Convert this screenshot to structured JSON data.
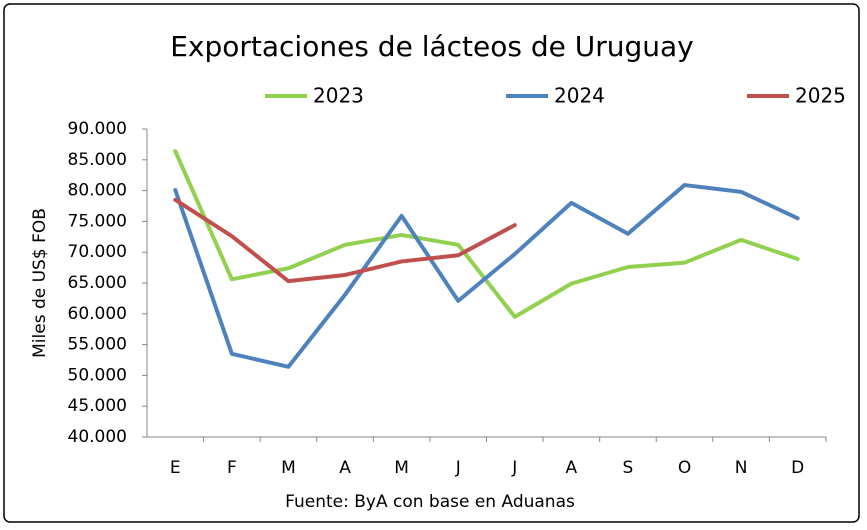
{
  "chart_data": {
    "type": "line",
    "title": "Exportaciones de lácteos de Uruguay",
    "y_label": "Miles de US$ FOB",
    "source": "Fuente: ByA con base en Aduanas",
    "categories": [
      "E",
      "F",
      "M",
      "A",
      "M",
      "J",
      "J",
      "A",
      "S",
      "O",
      "N",
      "D"
    ],
    "series": [
      {
        "name": "2023",
        "color": "#92d050",
        "values": [
          86400,
          65600,
          67400,
          71200,
          72800,
          71200,
          59500,
          64900,
          67600,
          68300,
          72000,
          68900
        ]
      },
      {
        "name": "2024",
        "color": "#4f81bd",
        "values": [
          80100,
          53500,
          51400,
          63100,
          75900,
          62100,
          69700,
          78000,
          73000,
          80900,
          79800,
          75500
        ]
      },
      {
        "name": "2025",
        "color": "#c0504d",
        "values": [
          78500,
          72600,
          65300,
          66300,
          68500,
          69500,
          74400,
          null,
          null,
          null,
          null,
          null
        ]
      }
    ],
    "ylim": [
      40000,
      90000
    ],
    "yticks": [
      {
        "value": 40000,
        "label": "40.000"
      },
      {
        "value": 45000,
        "label": "45.000"
      },
      {
        "value": 50000,
        "label": "50.000"
      },
      {
        "value": 55000,
        "label": "55.000"
      },
      {
        "value": 60000,
        "label": "60.000"
      },
      {
        "value": 65000,
        "label": "65.000"
      },
      {
        "value": 70000,
        "label": "70.000"
      },
      {
        "value": 75000,
        "label": "75.000"
      },
      {
        "value": 80000,
        "label": "80.000"
      },
      {
        "value": 85000,
        "label": "85.000"
      },
      {
        "value": 90000,
        "label": "90.000"
      }
    ],
    "legend": "top"
  }
}
